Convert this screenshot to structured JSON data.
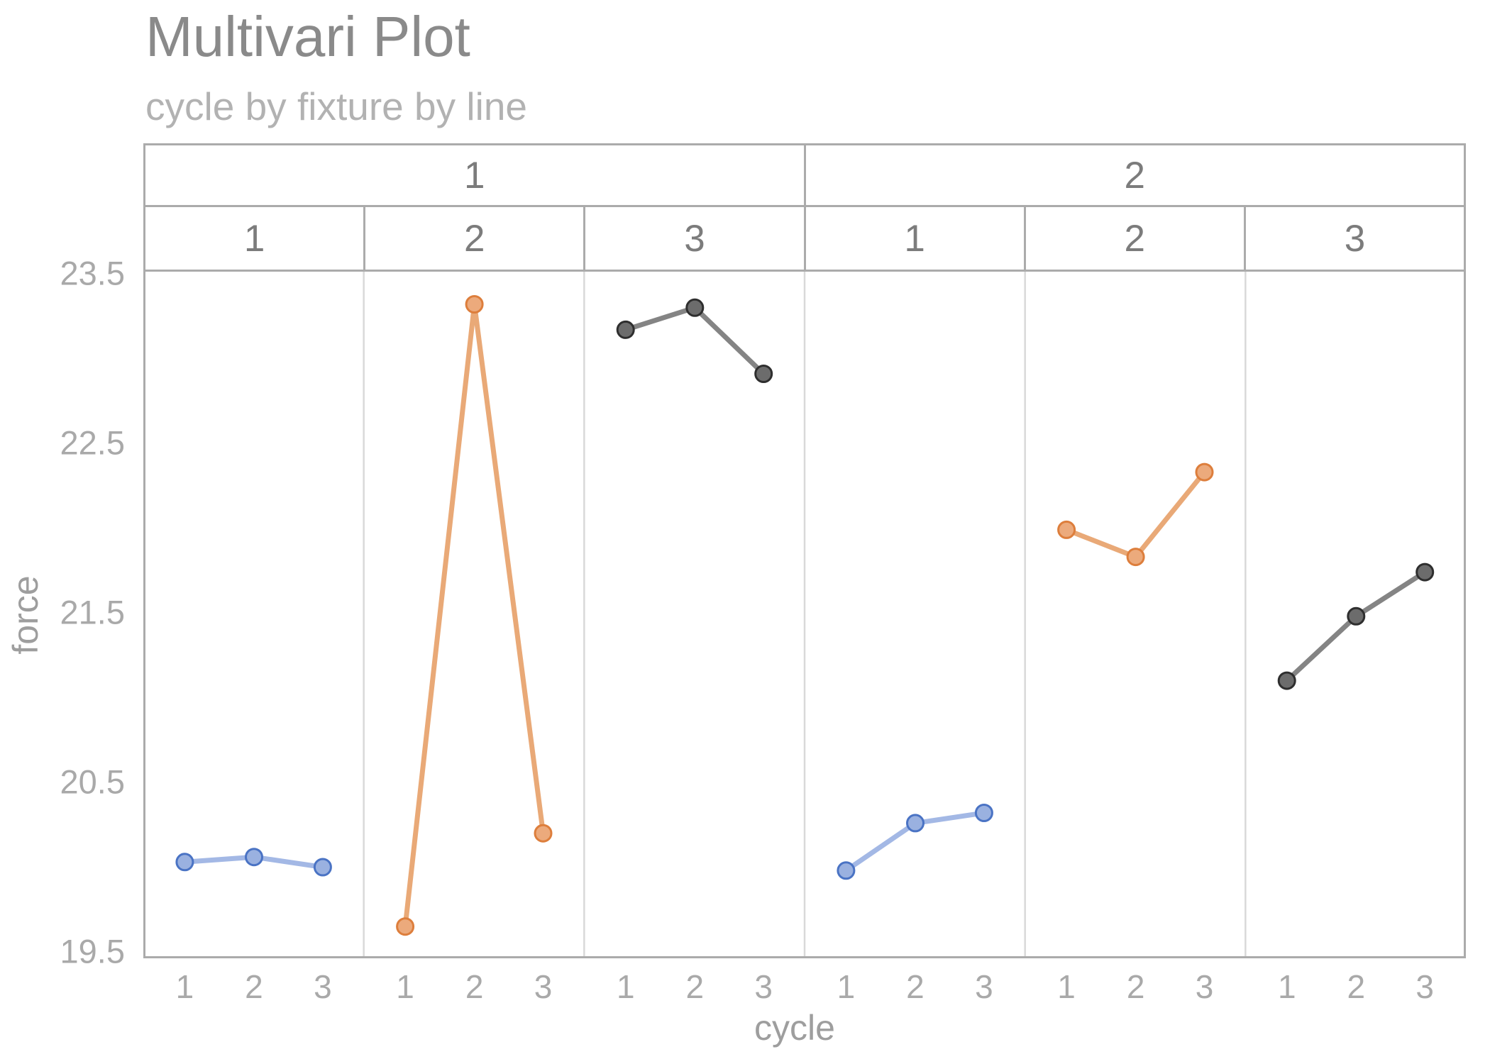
{
  "title": "Multivari Plot",
  "subtitle": "cycle by fixture by line",
  "axes": {
    "y_label": "force",
    "x_label": "cycle"
  },
  "chart_data": {
    "type": "line",
    "title": "Multivari Plot",
    "subtitle": "cycle by fixture by line",
    "xlabel": "cycle",
    "ylabel": "force",
    "ylim": [
      19.45,
      23.55
    ],
    "y_ticks": [
      "23.5",
      "22.5",
      "21.5",
      "20.5",
      "19.5"
    ],
    "x_ticks": [
      "1",
      "2",
      "3"
    ],
    "grid": "panel-separators-only",
    "legend": "none",
    "facets": {
      "outer_variable": "line",
      "outer_labels": [
        "1",
        "2"
      ],
      "inner_variable": "fixture",
      "inner_labels": [
        "1",
        "2",
        "3",
        "1",
        "2",
        "3"
      ]
    },
    "panels": [
      {
        "line": "1",
        "fixture": "1",
        "color_role": "blue",
        "x": [
          1,
          2,
          3
        ],
        "force": [
          20.03,
          20.06,
          20.0
        ]
      },
      {
        "line": "1",
        "fixture": "2",
        "color_role": "orange",
        "x": [
          1,
          2,
          3
        ],
        "force": [
          19.65,
          23.32,
          20.2
        ]
      },
      {
        "line": "1",
        "fixture": "3",
        "color_role": "dark",
        "x": [
          1,
          2,
          3
        ],
        "force": [
          23.17,
          23.3,
          22.91
        ]
      },
      {
        "line": "2",
        "fixture": "1",
        "color_role": "blue",
        "x": [
          1,
          2,
          3
        ],
        "force": [
          19.98,
          20.26,
          20.32
        ]
      },
      {
        "line": "2",
        "fixture": "2",
        "color_role": "orange",
        "x": [
          1,
          2,
          3
        ],
        "force": [
          21.99,
          21.83,
          22.33
        ]
      },
      {
        "line": "2",
        "fixture": "3",
        "color_role": "dark",
        "x": [
          1,
          2,
          3
        ],
        "force": [
          21.1,
          21.48,
          21.74
        ]
      }
    ],
    "palette": {
      "blue": {
        "stroke": "#4a73c4",
        "fill": "#9ab1e0",
        "line": "#a3b8e5"
      },
      "orange": {
        "stroke": "#dd7e3c",
        "fill": "#ecaa7c",
        "line": "#e9a977"
      },
      "dark": {
        "stroke": "#2e2e2e",
        "fill": "#6c6c6c",
        "line": "#848484"
      }
    }
  }
}
